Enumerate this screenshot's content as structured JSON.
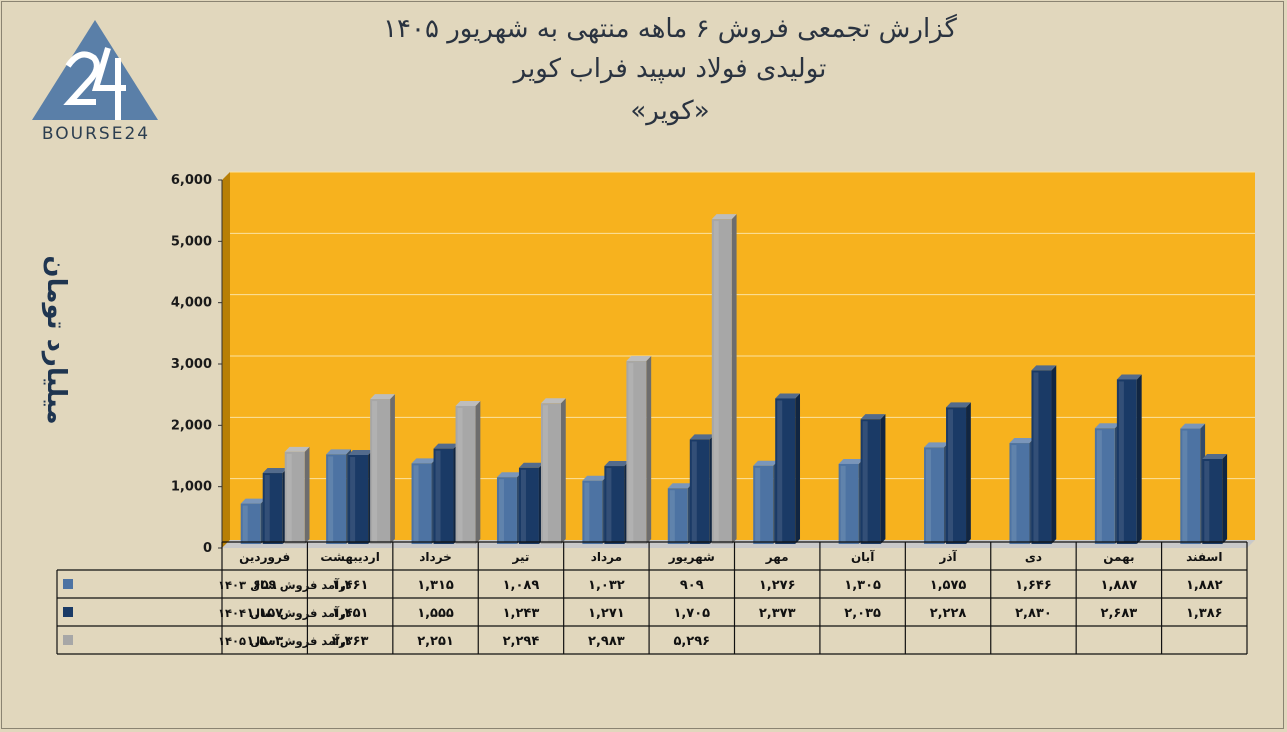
{
  "title": {
    "line1": "گزارش تجمعی فروش ۶ ماهه منتهی به شهریور ۱۴۰۵",
    "line2": "تولیدی فولاد سپید فراب کویر",
    "line3": "«کویر»"
  },
  "logo": {
    "text": "BOURSE24",
    "mark": "24"
  },
  "chart_data": {
    "type": "bar",
    "ylabel": "میلیارد تومان",
    "ylim": [
      0,
      6000
    ],
    "yticks": [
      "0",
      "1,000",
      "2,000",
      "3,000",
      "4,000",
      "5,000",
      "6,000"
    ],
    "categories": [
      "فروردین",
      "اردیبهشت",
      "خرداد",
      "تیر",
      "مرداد",
      "شهریور",
      "مهر",
      "آبان",
      "آذر",
      "دی",
      "بهمن",
      "اسفند"
    ],
    "series": [
      {
        "name": "درآمد فروش سال ۱۴۰۳",
        "color": "#4d73a3",
        "values": [
          659,
          1461,
          1315,
          1089,
          1032,
          909,
          1276,
          1305,
          1575,
          1646,
          1887,
          1882
        ],
        "labels": [
          "۶۵۹",
          "۱,۴۶۱",
          "۱,۳۱۵",
          "۱,۰۸۹",
          "۱,۰۳۲",
          "۹۰۹",
          "۱,۲۷۶",
          "۱,۳۰۵",
          "۱,۵۷۵",
          "۱,۶۴۶",
          "۱,۸۸۷",
          "۱,۸۸۲"
        ]
      },
      {
        "name": "درآمد فروش سال ۱۴۰۴",
        "color": "#1a3a66",
        "values": [
          1157,
          1451,
          1555,
          1243,
          1271,
          1705,
          2373,
          2035,
          2228,
          2830,
          2683,
          1386
        ],
        "labels": [
          "۱,۱۵۷",
          "۱,۴۵۱",
          "۱,۵۵۵",
          "۱,۲۴۳",
          "۱,۲۷۱",
          "۱,۷۰۵",
          "۲,۳۷۳",
          "۲,۰۳۵",
          "۲,۲۲۸",
          "۲,۸۳۰",
          "۲,۶۸۳",
          "۱,۳۸۶"
        ]
      },
      {
        "name": "درآمد فروش سال ۱۴۰۵",
        "color": "#a7a7a7",
        "values": [
          1503,
          2363,
          2251,
          2294,
          2983,
          5296,
          null,
          null,
          null,
          null,
          null,
          null
        ],
        "labels": [
          "۱,۵۰۳",
          "۲,۳۶۳",
          "۲,۲۵۱",
          "۲,۲۹۴",
          "۲,۹۸۳",
          "۵,۲۹۶",
          "",
          "",
          "",
          "",
          "",
          ""
        ]
      }
    ],
    "plot_background": "#f7b21e",
    "grid": true,
    "legend": "data-table"
  }
}
